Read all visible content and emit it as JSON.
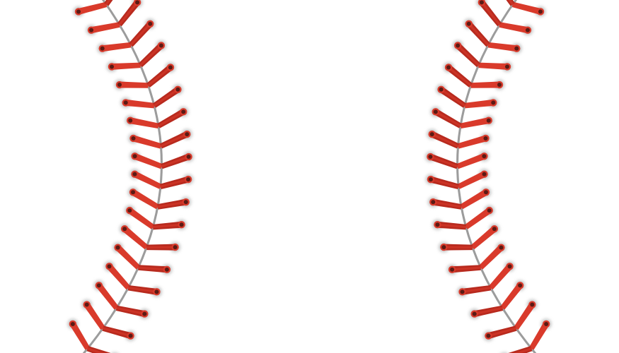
{
  "scene": {
    "subject": "baseball-seams",
    "background_color": "#ffffff",
    "seam_count": 2,
    "stitches_per_seam": 18
  },
  "colors": {
    "stitch": "#d93a2b",
    "stitch_dark": "#b82a1e",
    "stitch_hole": "#5a1a14",
    "seam_thread": "#9c9c9c",
    "shadow": "#c8c8c8"
  }
}
